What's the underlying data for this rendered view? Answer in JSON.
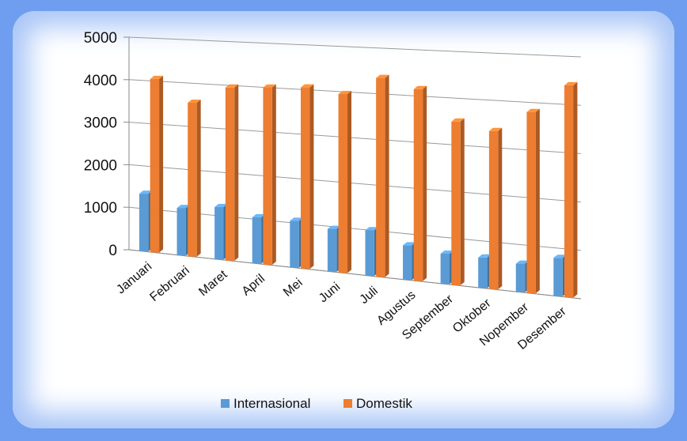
{
  "chart_data": {
    "type": "bar",
    "categories": [
      "Januari",
      "Februari",
      "Maret",
      "April",
      "Mei",
      "Juni",
      "Juli",
      "Agustus",
      "September",
      "Oktober",
      "Nopember",
      "Desember"
    ],
    "series": [
      {
        "name": "Internasional",
        "values": [
          1350,
          1100,
          1200,
          1050,
          1050,
          950,
          1000,
          750,
          650,
          650,
          600,
          800
        ],
        "color": "#5b9bd5"
      },
      {
        "name": "Domestik",
        "values": [
          4050,
          3550,
          3950,
          4000,
          4050,
          3950,
          4350,
          4150,
          3500,
          3350,
          3800,
          4400
        ],
        "color": "#ed7d31"
      }
    ],
    "ylim": [
      0,
      5000
    ],
    "yticks": [
      "0",
      "1000",
      "2000",
      "3000",
      "4000",
      "5000"
    ],
    "grid": true,
    "legend": "bottom",
    "style": "3d-perspective"
  },
  "colors": {
    "frame": "#6f9ef0",
    "glow": "#a9c5f7"
  }
}
